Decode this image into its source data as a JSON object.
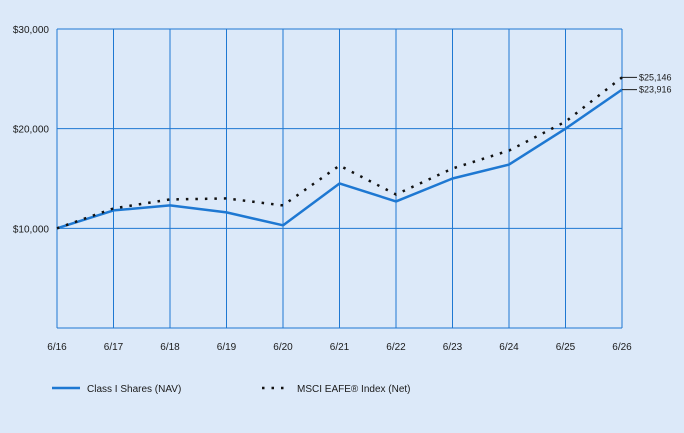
{
  "chart_data": {
    "type": "line",
    "title": "",
    "xlabel": "",
    "ylabel": "",
    "x": [
      "6/16",
      "6/17",
      "6/18",
      "6/19",
      "6/20",
      "6/21",
      "6/22",
      "6/23",
      "6/24",
      "6/25",
      "6/26"
    ],
    "ylim": [
      0,
      30000
    ],
    "y_ticks": [
      {
        "value": 10000,
        "label": "$10,000"
      },
      {
        "value": 20000,
        "label": "$20,000"
      },
      {
        "value": 30000,
        "label": "$30,000"
      }
    ],
    "grid": true,
    "legend_position": "bottom",
    "series": [
      {
        "name": "Class I Shares (NAV)",
        "style": "solid",
        "color": "#1e78d2",
        "values": [
          10000,
          11800,
          12300,
          11600,
          10300,
          14500,
          12700,
          15000,
          16400,
          20000,
          23916
        ],
        "end_label": "$23,916"
      },
      {
        "name": "MSCI EAFE® Index (Net)",
        "style": "dotted",
        "color": "#111111",
        "values": [
          10000,
          12000,
          12900,
          13000,
          12300,
          16300,
          13400,
          16000,
          17800,
          20700,
          25146
        ],
        "end_label": "$25,146"
      }
    ]
  },
  "colors": {
    "background": "#dce9f9",
    "gridline": "#1e78d2",
    "axis": "#1a1a1a"
  }
}
